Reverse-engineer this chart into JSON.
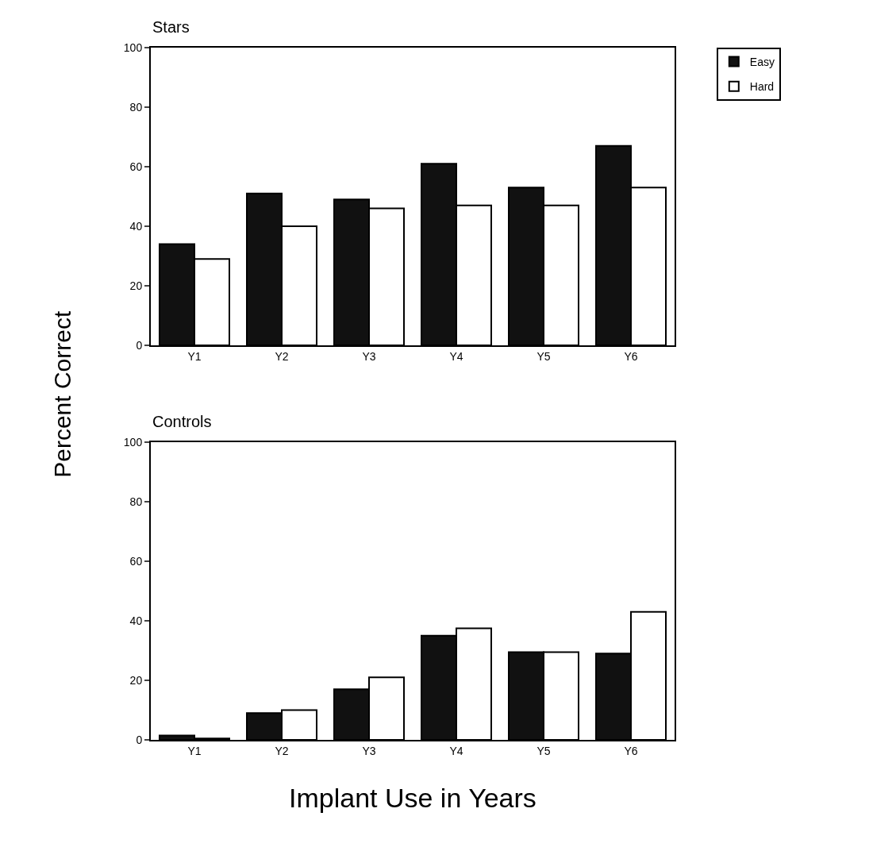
{
  "chart_data": [
    {
      "type": "bar",
      "title": "Stars",
      "ylabel": "Percent Correct",
      "categories": [
        "Y1",
        "Y2",
        "Y3",
        "Y4",
        "Y5",
        "Y6"
      ],
      "series": [
        {
          "name": "Easy",
          "color": "#111111",
          "values": [
            34,
            51,
            49,
            61,
            53,
            67
          ]
        },
        {
          "name": "Hard",
          "color": "#ffffff",
          "values": [
            29,
            40,
            46,
            47,
            47,
            53
          ]
        }
      ],
      "ylim": [
        0,
        100
      ],
      "yticks": [
        0,
        20,
        40,
        60,
        80,
        100
      ],
      "legend": "top right"
    },
    {
      "type": "bar",
      "title": "Controls",
      "xlabel": "Implant Use in Years",
      "categories": [
        "Y1",
        "Y2",
        "Y3",
        "Y4",
        "Y5",
        "Y6"
      ],
      "series": [
        {
          "color": "#111111",
          "values": [
            1.5,
            9,
            17,
            35,
            29.5,
            29
          ]
        },
        {
          "color": "#ffffff",
          "values": [
            0.5,
            10,
            21,
            37.5,
            29.5,
            43
          ]
        }
      ],
      "ylim": [
        0,
        100
      ],
      "yticks": [
        0,
        20,
        40,
        60,
        80,
        100
      ]
    }
  ]
}
